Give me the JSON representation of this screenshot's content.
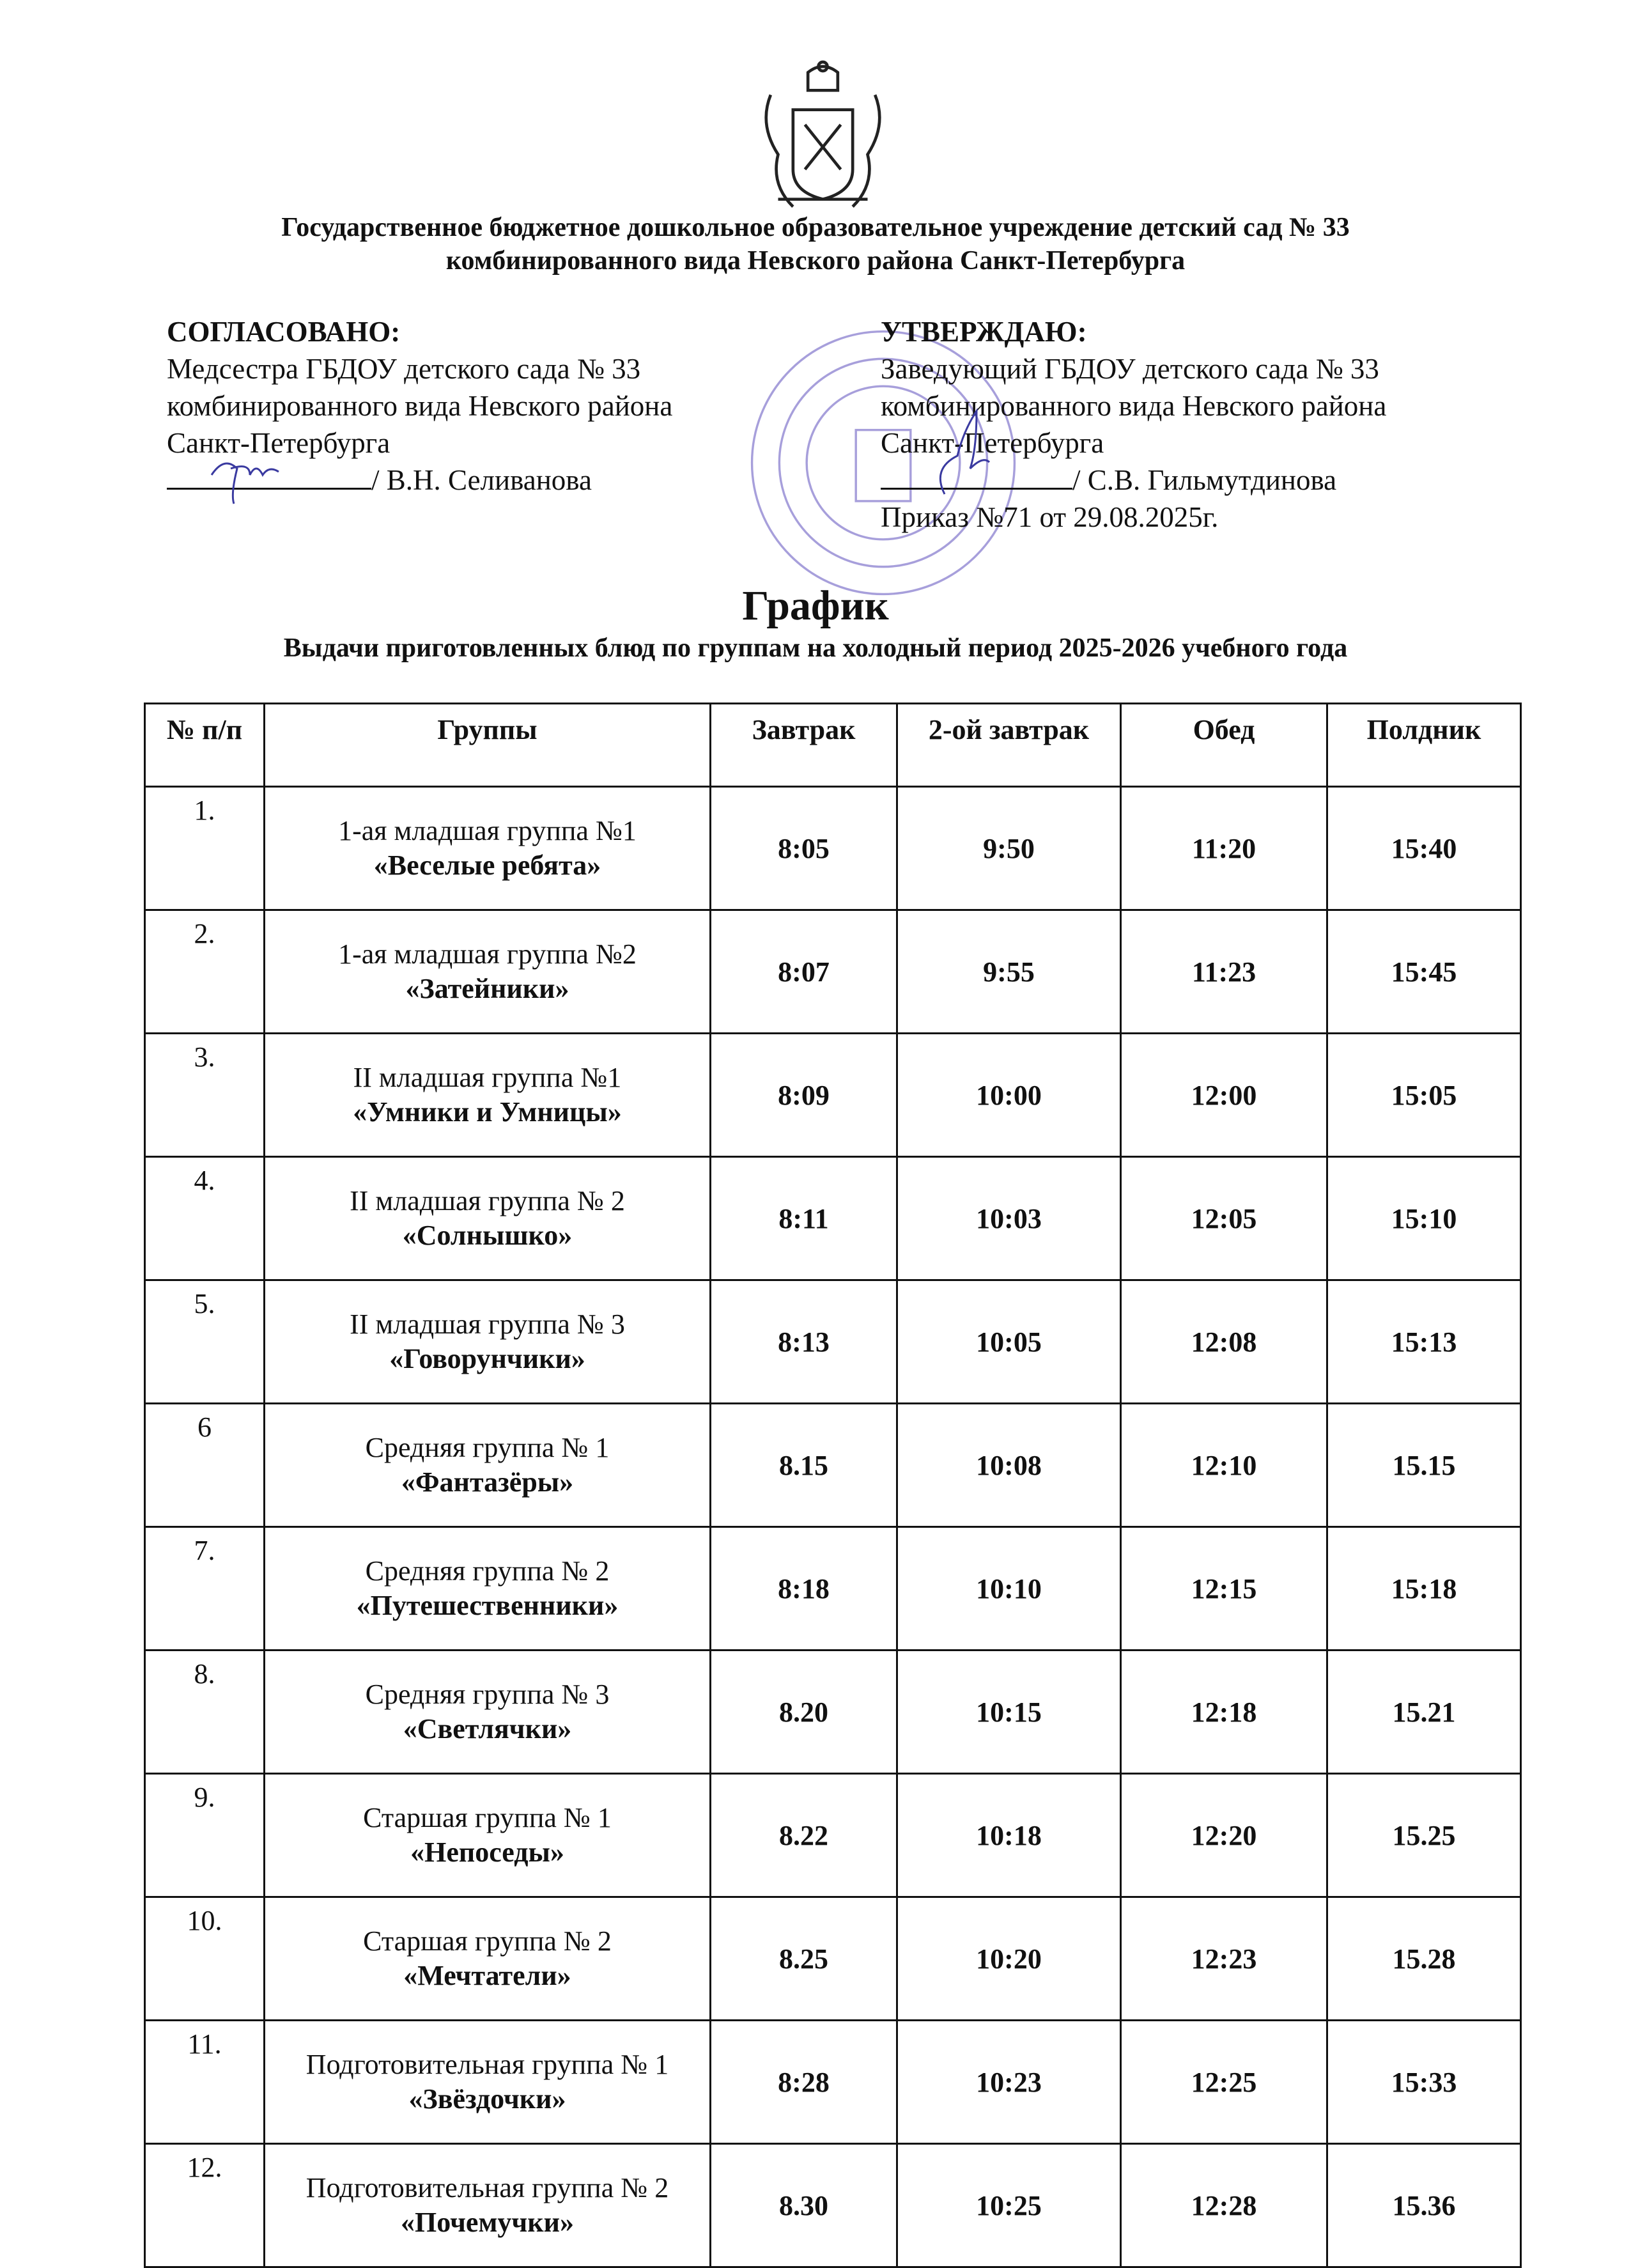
{
  "header": {
    "institution_line1": "Государственное бюджетное дошкольное образовательное учреждение детский сад № 33",
    "institution_line2": "комбинированного вида Невского района Санкт-Петербурга"
  },
  "agreed": {
    "heading": "СОГЛАСОВАНО:",
    "line1": "Медсестра ГБДОУ детского сада № 33",
    "line2": "комбинированного вида Невского района",
    "line3": "Санкт-Петербурга",
    "signatory": "/ В.Н. Селиванова"
  },
  "approved": {
    "heading": "УТВЕРЖДАЮ:",
    "line1": "Заведующий ГБДОУ детского сада № 33",
    "line2": "комбинированного вида Невского района",
    "line3": "Санкт-Петербурга",
    "signatory": "/ С.В. Гильмутдинова",
    "order": "Приказ №71 от 29.08.2025г."
  },
  "title": "График",
  "subtitle": "Выдачи приготовленных блюд по группам на холодный период 2025-2026 учебного года",
  "table": {
    "columns": [
      "№ п/п",
      "Группы",
      "Завтрак",
      "2-ой завтрак",
      "Обед",
      "Полдник"
    ],
    "rows": [
      {
        "n": "1.",
        "group": "1-ая младшая группа №1",
        "name": "«Веселые ребята»",
        "t": [
          "8:05",
          "9:50",
          "11:20",
          "15:40"
        ]
      },
      {
        "n": "2.",
        "group": "1-ая младшая группа №2",
        "name": "«Затейники»",
        "t": [
          "8:07",
          "9:55",
          "11:23",
          "15:45"
        ]
      },
      {
        "n": "3.",
        "group": "II младшая группа №1",
        "name": "«Умники и Умницы»",
        "t": [
          "8:09",
          "10:00",
          "12:00",
          "15:05"
        ]
      },
      {
        "n": "4.",
        "group": "II младшая группа № 2",
        "name": "«Солнышко»",
        "t": [
          "8:11",
          "10:03",
          "12:05",
          "15:10"
        ]
      },
      {
        "n": "5.",
        "group": "II младшая группа № 3",
        "name": "«Говорунчики»",
        "t": [
          "8:13",
          "10:05",
          "12:08",
          "15:13"
        ]
      },
      {
        "n": "6",
        "group": "Средняя группа № 1",
        "name": "«Фантазёры»",
        "t": [
          "8.15",
          "10:08",
          "12:10",
          "15.15"
        ]
      },
      {
        "n": "7.",
        "group": "Средняя группа № 2",
        "name": "«Путешественники»",
        "t": [
          "8:18",
          "10:10",
          "12:15",
          "15:18"
        ]
      },
      {
        "n": "8.",
        "group": "Средняя группа № 3",
        "name": "«Светлячки»",
        "t": [
          "8.20",
          "10:15",
          "12:18",
          "15.21"
        ]
      },
      {
        "n": "9.",
        "group": "Старшая группа № 1",
        "name": "«Непоседы»",
        "t": [
          "8.22",
          "10:18",
          "12:20",
          "15.25"
        ]
      },
      {
        "n": "10.",
        "group": "Старшая группа № 2",
        "name": "«Мечтатели»",
        "t": [
          "8.25",
          "10:20",
          "12:23",
          "15.28"
        ]
      },
      {
        "n": "11.",
        "group": "Подготовительная группа № 1",
        "name": "«Звёздочки»",
        "t": [
          "8:28",
          "10:23",
          "12:25",
          "15:33"
        ]
      },
      {
        "n": "12.",
        "group": "Подготовительная группа № 2",
        "name": "«Почемучки»",
        "t": [
          "8.30",
          "10:25",
          "12:28",
          "15.36"
        ]
      }
    ]
  },
  "colors": {
    "ink": "#111111",
    "stamp": "#8a7fd0",
    "signature": "#3a3aa0"
  },
  "icons": {
    "emblem": "st-petersburg-coat-of-arms",
    "stamp": "round-institution-seal",
    "signature": "handwritten-signature"
  }
}
